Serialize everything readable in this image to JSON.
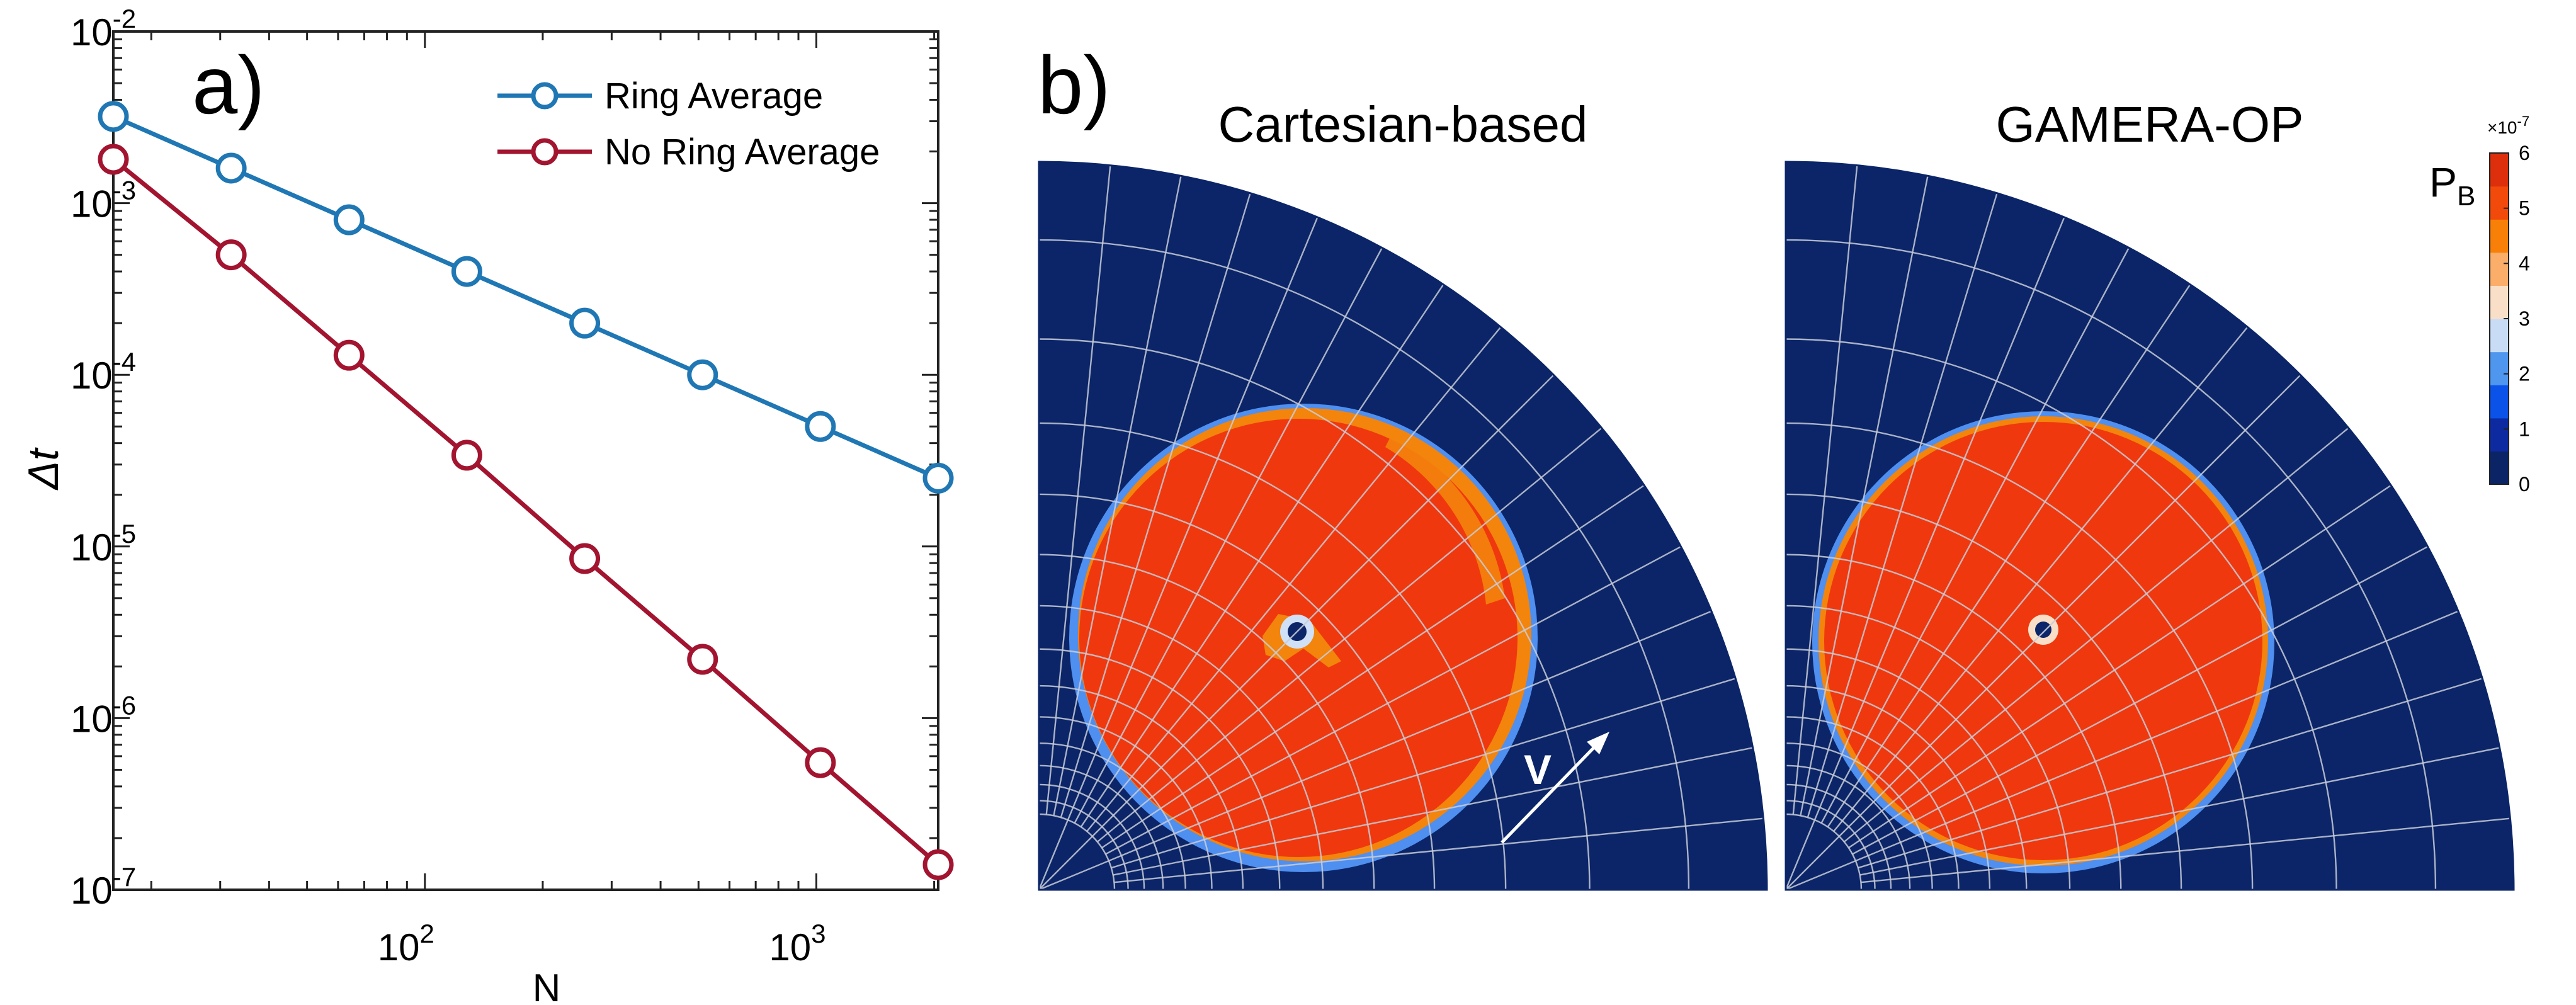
{
  "chart_data": [
    {
      "type": "line",
      "panel_label": "a)",
      "xlabel": "N",
      "ylabel": "Δt",
      "xscale": "log",
      "yscale": "log",
      "xlim": [
        16,
        2048
      ],
      "ylim": [
        1e-07,
        0.01
      ],
      "x_ticks": [
        {
          "value": 100,
          "base": "10",
          "exp": "2"
        },
        {
          "value": 1000,
          "base": "10",
          "exp": "3"
        }
      ],
      "y_ticks": [
        {
          "value": 0.01,
          "base": "10",
          "exp": "-2"
        },
        {
          "value": 0.001,
          "base": "10",
          "exp": "-3"
        },
        {
          "value": 0.0001,
          "base": "10",
          "exp": "-4"
        },
        {
          "value": 1e-05,
          "base": "10",
          "exp": "-5"
        },
        {
          "value": 1e-06,
          "base": "10",
          "exp": "-6"
        },
        {
          "value": 1e-07,
          "base": "10",
          "exp": "-7"
        }
      ],
      "x": [
        16,
        32,
        64,
        128,
        256,
        512,
        1024,
        2048
      ],
      "series": [
        {
          "name": "Ring Average",
          "color": "#1f77b4",
          "values": [
            0.0032,
            0.0016,
            0.0008,
            0.0004,
            0.0002,
            0.0001,
            5e-05,
            2.5e-05
          ]
        },
        {
          "name": "No Ring Average",
          "color": "#a2142f",
          "values": [
            0.0018,
            0.0005,
            0.00013,
            3.4e-05,
            8.5e-06,
            2.2e-06,
            5.5e-07,
            1.4e-07
          ]
        }
      ],
      "legend_position": "top-right"
    },
    {
      "type": "heatmap",
      "panel_label": "b)",
      "panels": [
        {
          "title": "Cartesian-based",
          "annotation": "V"
        },
        {
          "title": "GAMERA-OP"
        }
      ],
      "colorbar": {
        "label_main": "P",
        "label_sub": "B",
        "scale_prefix": "×10",
        "scale_exp": "-7",
        "range": [
          0,
          6
        ],
        "ticks": [
          "0",
          "1",
          "2",
          "3",
          "4",
          "5",
          "6"
        ],
        "colors": [
          "#0a2466",
          "#0d2aa1",
          "#0b52e8",
          "#4f96ef",
          "#c9dcf6",
          "#fadfc8",
          "#fbad6a",
          "#f88008",
          "#f14a0a",
          "#dd2f0c"
        ]
      },
      "colors": {
        "background": "#0b2568",
        "blob": "#f0380e",
        "blob_edge": "#f3840c",
        "grid": "#c8ccd8"
      }
    }
  ]
}
